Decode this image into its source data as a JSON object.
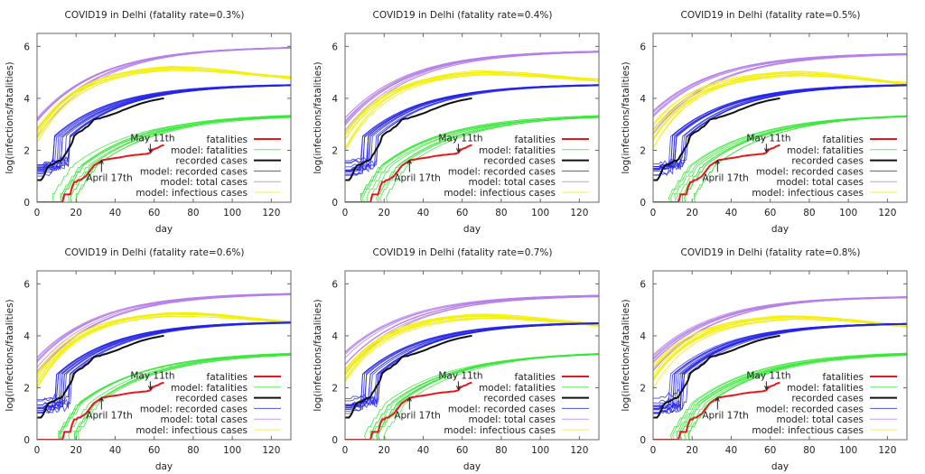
{
  "figure": {
    "layout": "2x3 grid of line charts"
  },
  "chart_data": [
    {
      "type": "line",
      "title": "COVID19 in Delhi (fatality rate=0.3%)",
      "fatality_rate": "0.3%",
      "xlabel": "day",
      "ylabel": "log(infections/fatalities)",
      "xlim": [
        0,
        130
      ],
      "ylim": [
        0,
        6.5
      ],
      "xticks": [
        "0",
        "20",
        "40",
        "60",
        "80",
        "100",
        "120"
      ],
      "yticks": [
        "0",
        "2",
        "4",
        "6"
      ],
      "legend_position": "bottom-right",
      "annotations": [
        {
          "text": "May 11th",
          "x": 58,
          "y": 1.9
        },
        {
          "text": "April 17th",
          "x": 33,
          "y": 1.65
        }
      ],
      "model_params": {
        "total_end": 6.0,
        "infectious_peak": 5.15,
        "infectious_end": 4.8,
        "recorded_end": 4.55,
        "fatal_end": 3.4,
        "spread": 0.35
      }
    },
    {
      "type": "line",
      "title": "COVID19 in Delhi (fatality rate=0.4%)",
      "fatality_rate": "0.4%",
      "xlabel": "day",
      "ylabel": "log(infections/fatalities)",
      "xlim": [
        0,
        130
      ],
      "ylim": [
        0,
        6.5
      ],
      "xticks": [
        "0",
        "20",
        "40",
        "60",
        "80",
        "100",
        "120"
      ],
      "yticks": [
        "0",
        "2",
        "4",
        "6"
      ],
      "legend_position": "bottom-right",
      "annotations": [
        {
          "text": "May 11th",
          "x": 58,
          "y": 1.9
        },
        {
          "text": "April 17th",
          "x": 33,
          "y": 1.65
        }
      ],
      "model_params": {
        "total_end": 5.85,
        "infectious_peak": 4.98,
        "infectious_end": 4.7,
        "recorded_end": 4.55,
        "fatal_end": 3.38,
        "spread": 0.3
      }
    },
    {
      "type": "line",
      "title": "COVID19 in Delhi (fatality rate=0.5%)",
      "fatality_rate": "0.5%",
      "xlabel": "day",
      "ylabel": "log(infections/fatalities)",
      "xlim": [
        0,
        130
      ],
      "ylim": [
        0,
        6.5
      ],
      "xticks": [
        "0",
        "20",
        "40",
        "60",
        "80",
        "100",
        "120"
      ],
      "yticks": [
        "0",
        "2",
        "4",
        "6"
      ],
      "legend_position": "bottom-right",
      "annotations": [
        {
          "text": "May 11th",
          "x": 58,
          "y": 1.9
        },
        {
          "text": "April 17th",
          "x": 33,
          "y": 1.65
        }
      ],
      "model_params": {
        "total_end": 5.75,
        "infectious_peak": 4.95,
        "infectious_end": 4.58,
        "recorded_end": 4.55,
        "fatal_end": 3.4,
        "spread": 0.4
      }
    },
    {
      "type": "line",
      "title": "COVID19 in Delhi (fatality rate=0.6%)",
      "fatality_rate": "0.6%",
      "xlabel": "day",
      "ylabel": "log(infections/fatalities)",
      "xlim": [
        0,
        130
      ],
      "ylim": [
        0,
        6.5
      ],
      "xticks": [
        "0",
        "20",
        "40",
        "60",
        "80",
        "100",
        "120"
      ],
      "yticks": [
        "0",
        "2",
        "4",
        "6"
      ],
      "legend_position": "bottom-right",
      "annotations": [
        {
          "text": "May 11th",
          "x": 58,
          "y": 1.9
        },
        {
          "text": "April 17th",
          "x": 33,
          "y": 1.65
        }
      ],
      "model_params": {
        "total_end": 5.65,
        "infectious_peak": 4.82,
        "infectious_end": 4.52,
        "recorded_end": 4.55,
        "fatal_end": 3.38,
        "spread": 0.3
      }
    },
    {
      "type": "line",
      "title": "COVID19 in Delhi (fatality rate=0.7%)",
      "fatality_rate": "0.7%",
      "xlabel": "day",
      "ylabel": "log(infections/fatalities)",
      "xlim": [
        0,
        130
      ],
      "ylim": [
        0,
        6.5
      ],
      "xticks": [
        "0",
        "20",
        "40",
        "60",
        "80",
        "100",
        "120"
      ],
      "yticks": [
        "0",
        "2",
        "4",
        "6"
      ],
      "legend_position": "bottom-right",
      "annotations": [
        {
          "text": "May 11th",
          "x": 58,
          "y": 1.9
        },
        {
          "text": "April 17th",
          "x": 33,
          "y": 1.65
        }
      ],
      "model_params": {
        "total_end": 5.58,
        "infectious_peak": 4.75,
        "infectious_end": 4.42,
        "recorded_end": 4.52,
        "fatal_end": 3.38,
        "spread": 0.35
      }
    },
    {
      "type": "line",
      "title": "COVID19 in Delhi (fatality rate=0.8%)",
      "fatality_rate": "0.8%",
      "xlabel": "day",
      "ylabel": "log(infections/fatalities)",
      "xlim": [
        0,
        130
      ],
      "ylim": [
        0,
        6.5
      ],
      "xticks": [
        "0",
        "20",
        "40",
        "60",
        "80",
        "100",
        "120"
      ],
      "yticks": [
        "0",
        "2",
        "4",
        "6"
      ],
      "legend_position": "bottom-right",
      "annotations": [
        {
          "text": "May 11th",
          "x": 58,
          "y": 1.9
        },
        {
          "text": "April 17th",
          "x": 33,
          "y": 1.65
        }
      ],
      "model_params": {
        "total_end": 5.52,
        "infectious_peak": 4.7,
        "infectious_end": 4.38,
        "recorded_end": 4.5,
        "fatal_end": 3.38,
        "spread": 0.35
      }
    }
  ],
  "legend": [
    {
      "label": "fatalities",
      "color": "#e8161a",
      "kind": "data"
    },
    {
      "label": "model: fatalities",
      "color": "#3ae63a",
      "kind": "model"
    },
    {
      "label": "recorded cases",
      "color": "#111111",
      "kind": "data"
    },
    {
      "label": "model: recorded cases",
      "color": "#2323e6",
      "kind": "model"
    },
    {
      "label": "model: total cases",
      "color": "#b57ee8",
      "kind": "model"
    },
    {
      "label": "model: infectious cases",
      "color": "#f2ef10",
      "kind": "model"
    }
  ],
  "observed": {
    "fatalities": {
      "x": [
        0,
        13,
        14,
        17,
        18,
        19,
        20,
        21,
        22,
        23,
        24,
        25,
        26,
        27,
        28,
        29,
        30,
        31,
        32,
        33,
        34,
        36,
        38,
        40,
        42,
        44,
        46,
        48,
        50,
        52,
        54,
        56,
        57,
        58,
        59,
        60,
        61,
        62,
        63,
        64,
        65
      ],
      "y": [
        0,
        0,
        0.3,
        0.3,
        0.6,
        0.78,
        0.78,
        0.85,
        0.85,
        0.9,
        0.95,
        1.0,
        1.1,
        1.2,
        1.3,
        1.4,
        1.45,
        1.5,
        1.55,
        1.6,
        1.63,
        1.65,
        1.68,
        1.7,
        1.72,
        1.75,
        1.78,
        1.8,
        1.82,
        1.83,
        1.85,
        1.86,
        1.88,
        1.9,
        2.0,
        2.05,
        2.08,
        2.1,
        2.15,
        2.18,
        2.2
      ]
    },
    "recorded_cases": {
      "x": [
        0,
        2,
        3,
        4,
        5,
        6,
        7,
        8,
        9,
        10,
        11,
        12,
        13,
        14,
        15,
        16,
        17,
        18,
        19,
        20,
        21,
        22,
        23,
        24,
        25,
        26,
        27,
        28,
        29,
        30,
        31,
        32,
        33,
        34,
        35,
        36,
        38,
        40,
        42,
        44,
        46,
        48,
        50,
        52,
        54,
        56,
        58,
        60,
        62,
        64,
        65
      ],
      "y": [
        0.85,
        0.85,
        0.95,
        1.1,
        1.3,
        1.4,
        1.45,
        1.45,
        1.5,
        1.55,
        1.6,
        1.6,
        1.65,
        1.8,
        1.9,
        2.05,
        2.15,
        2.3,
        2.55,
        2.62,
        2.68,
        2.72,
        2.75,
        2.82,
        2.88,
        2.92,
        3.0,
        3.08,
        3.18,
        3.2,
        3.22,
        3.22,
        3.25,
        3.28,
        3.3,
        3.32,
        3.37,
        3.42,
        3.48,
        3.55,
        3.6,
        3.66,
        3.72,
        3.77,
        3.82,
        3.86,
        3.9,
        3.93,
        3.96,
        3.99,
        4.0
      ]
    }
  }
}
